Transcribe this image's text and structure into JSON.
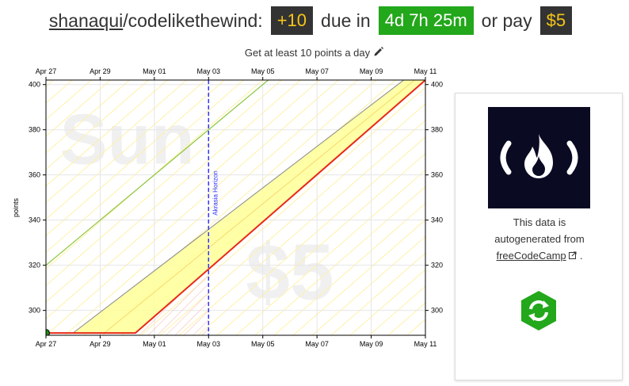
{
  "header": {
    "user": "shanaqui",
    "goal": "/codelikethewind:",
    "delta": "+10",
    "due_text": "due in",
    "countdown": "4d 7h 25m",
    "pay_text": "or pay",
    "pledge": "$5"
  },
  "subtitle": "Get at least 10 points a day",
  "sidebar": {
    "line1": "This data is",
    "line2": "autogenerated from",
    "link": "freeCodeCamp",
    "after_link": "."
  },
  "colors": {
    "dark_badge": "#333333",
    "badge_text": "#f5c518",
    "green_badge": "#23a71b",
    "road": "#ffff99",
    "red_line": "#e82a16",
    "green_line": "#8cc63f",
    "horizon": "#3333ff",
    "logo_bg": "#0a0a23",
    "refresh": "#23a71b"
  },
  "chart_data": {
    "type": "line",
    "xlabel": "",
    "ylabel": "points",
    "xticks": [
      "Apr 27",
      "Apr 29",
      "May 01",
      "May 03",
      "May 05",
      "May 07",
      "May 09",
      "May 11"
    ],
    "xlim": [
      "Apr 27",
      "May 11"
    ],
    "ylim": [
      289,
      402
    ],
    "yticks": [
      300,
      320,
      340,
      360,
      380,
      400
    ],
    "watermarks": [
      "Sun",
      "$5"
    ],
    "horizon_label": "Akrasia Horizon",
    "horizon_date": "May 03",
    "series": [
      {
        "kind": "red-line",
        "points": [
          [
            "Apr 27",
            290
          ],
          [
            "Apr 30.3",
            290
          ],
          [
            "May 11",
            402
          ]
        ]
      },
      {
        "kind": "road-top",
        "points": [
          [
            "Apr 28",
            290
          ],
          [
            "May 10.2",
            402
          ]
        ]
      },
      {
        "kind": "green-line",
        "points": [
          [
            "Apr 27",
            320
          ],
          [
            "May 05.2",
            402
          ]
        ]
      },
      {
        "kind": "datapoint",
        "points": [
          [
            "Apr 27",
            290
          ]
        ]
      }
    ]
  }
}
